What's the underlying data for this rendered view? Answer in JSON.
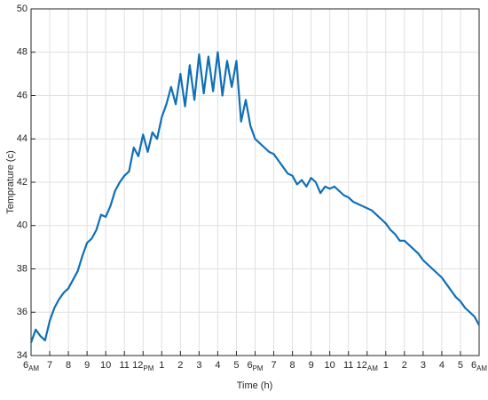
{
  "chart_data": {
    "type": "line",
    "x_label": "Time (h)",
    "y_label": "Temprature (c)",
    "xlim": [
      0,
      24
    ],
    "ylim": [
      34,
      50
    ],
    "grid": true,
    "yticks": [
      34,
      36,
      38,
      40,
      42,
      44,
      46,
      48,
      50
    ],
    "xticks": [
      {
        "value": 0,
        "label": "6",
        "sub": "AM"
      },
      {
        "value": 1,
        "label": "7"
      },
      {
        "value": 2,
        "label": "8"
      },
      {
        "value": 3,
        "label": "9"
      },
      {
        "value": 4,
        "label": "10"
      },
      {
        "value": 5,
        "label": "11"
      },
      {
        "value": 6,
        "label": "12",
        "sub": "PM"
      },
      {
        "value": 7,
        "label": "1"
      },
      {
        "value": 8,
        "label": "2"
      },
      {
        "value": 9,
        "label": "3"
      },
      {
        "value": 10,
        "label": "4"
      },
      {
        "value": 11,
        "label": "5"
      },
      {
        "value": 12,
        "label": "6",
        "sub": "PM"
      },
      {
        "value": 13,
        "label": "7"
      },
      {
        "value": 14,
        "label": "8"
      },
      {
        "value": 15,
        "label": "9"
      },
      {
        "value": 16,
        "label": "10"
      },
      {
        "value": 17,
        "label": "11"
      },
      {
        "value": 18,
        "label": "12",
        "sub": "AM"
      },
      {
        "value": 19,
        "label": "1"
      },
      {
        "value": 20,
        "label": "2"
      },
      {
        "value": 21,
        "label": "3"
      },
      {
        "value": 22,
        "label": "4"
      },
      {
        "value": 23,
        "label": "5"
      },
      {
        "value": 24,
        "label": "6",
        "sub": "AM"
      }
    ],
    "x": [
      0,
      0.25,
      0.5,
      0.75,
      1,
      1.25,
      1.5,
      1.75,
      2,
      2.25,
      2.5,
      2.75,
      3,
      3.25,
      3.5,
      3.75,
      4,
      4.25,
      4.5,
      4.75,
      5,
      5.25,
      5.5,
      5.75,
      6,
      6.25,
      6.5,
      6.75,
      7,
      7.25,
      7.5,
      7.75,
      8,
      8.25,
      8.5,
      8.75,
      9,
      9.25,
      9.5,
      9.75,
      10,
      10.25,
      10.5,
      10.75,
      11,
      11.25,
      11.5,
      11.75,
      12,
      12.25,
      12.5,
      12.75,
      13,
      13.25,
      13.5,
      13.75,
      14,
      14.25,
      14.5,
      14.75,
      15,
      15.25,
      15.5,
      15.75,
      16,
      16.25,
      16.5,
      16.75,
      17,
      17.25,
      17.5,
      17.75,
      18,
      18.25,
      18.5,
      18.75,
      19,
      19.25,
      19.5,
      19.75,
      20,
      20.25,
      20.5,
      20.75,
      21,
      21.25,
      21.5,
      21.75,
      22,
      22.25,
      22.5,
      22.75,
      23,
      23.25,
      23.5,
      23.75,
      24
    ],
    "series": [
      {
        "color": "#0f6fb7",
        "values": [
          34.6,
          35.2,
          34.9,
          34.7,
          35.6,
          36.2,
          36.6,
          36.9,
          37.1,
          37.5,
          37.9,
          38.6,
          39.2,
          39.4,
          39.8,
          40.5,
          40.4,
          40.9,
          41.6,
          42.0,
          42.3,
          42.5,
          43.6,
          43.2,
          44.2,
          43.4,
          44.3,
          44.0,
          45.0,
          45.6,
          46.4,
          45.6,
          47.0,
          45.5,
          47.4,
          45.8,
          47.9,
          46.1,
          47.8,
          46.2,
          48.0,
          46.0,
          47.6,
          46.4,
          47.6,
          44.8,
          45.8,
          44.6,
          44.0,
          43.8,
          43.6,
          43.4,
          43.3,
          43.0,
          42.7,
          42.4,
          42.3,
          41.9,
          42.1,
          41.8,
          42.2,
          42.0,
          41.5,
          41.8,
          41.7,
          41.8,
          41.6,
          41.4,
          41.3,
          41.1,
          41.0,
          40.9,
          40.8,
          40.7,
          40.5,
          40.3,
          40.1,
          39.8,
          39.6,
          39.3,
          39.3,
          39.1,
          38.9,
          38.7,
          38.4,
          38.2,
          38.0,
          37.8,
          37.6,
          37.3,
          37.0,
          36.7,
          36.5,
          36.2,
          36.0,
          35.8,
          35.4
        ]
      }
    ]
  }
}
